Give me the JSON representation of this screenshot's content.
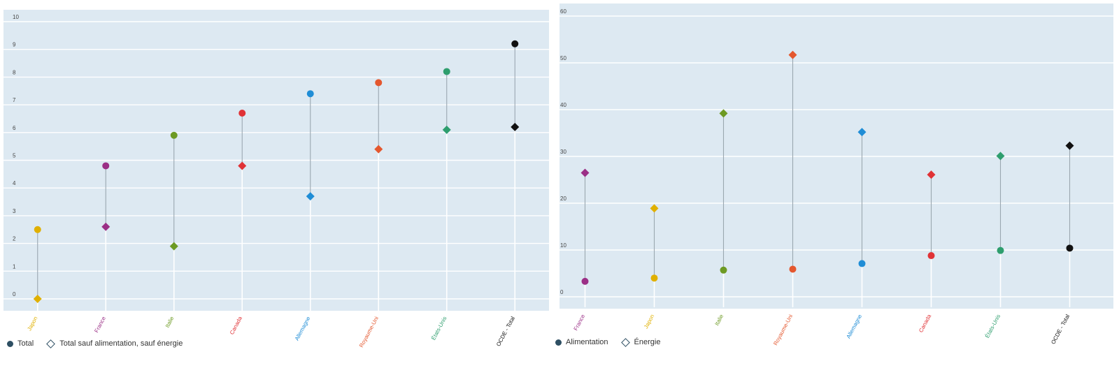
{
  "chart_data": [
    {
      "type": "scatter",
      "title": "",
      "xlabel": "",
      "ylabel": "",
      "ylim": [
        0,
        10
      ],
      "yticks": [
        0,
        1,
        2,
        3,
        4,
        5,
        6,
        7,
        8,
        9,
        10
      ],
      "grid": true,
      "legend_position": "bottom-left",
      "categories": [
        "Japon",
        "France",
        "Italie",
        "Canada",
        "Allemagne",
        "Royaume-Uni",
        "États-Unis",
        "OCDE - Total"
      ],
      "category_colors": [
        "#e0b000",
        "#9b2f86",
        "#6d9a23",
        "#e03236",
        "#1f8dd6",
        "#e4572e",
        "#2e9e6e",
        "#111111"
      ],
      "series": [
        {
          "name": "Total",
          "marker": "circle",
          "values": [
            2.5,
            4.8,
            5.9,
            6.7,
            7.4,
            7.8,
            8.2,
            9.2
          ]
        },
        {
          "name": "Total sauf alimentation, sauf énergie",
          "marker": "diamond",
          "values": [
            0.0,
            2.6,
            1.9,
            4.8,
            3.7,
            5.4,
            6.1,
            6.2
          ]
        }
      ]
    },
    {
      "type": "scatter",
      "title": "",
      "xlabel": "",
      "ylabel": "",
      "ylim": [
        0,
        60
      ],
      "yticks": [
        0,
        10,
        20,
        30,
        40,
        50,
        60
      ],
      "grid": true,
      "legend_position": "bottom-left",
      "categories": [
        "France",
        "Japon",
        "Italie",
        "Royaume-Uni",
        "Allemagne",
        "Canada",
        "États-Unis",
        "OCDE - Total"
      ],
      "category_colors": [
        "#9b2f86",
        "#e0b000",
        "#6d9a23",
        "#e4572e",
        "#1f8dd6",
        "#e03236",
        "#2e9e6e",
        "#111111"
      ],
      "series": [
        {
          "name": "Alimentation",
          "marker": "circle",
          "values": [
            3.3,
            4.0,
            5.7,
            5.9,
            7.1,
            8.8,
            9.9,
            10.4
          ]
        },
        {
          "name": "Énergie",
          "marker": "diamond",
          "values": [
            26.5,
            18.9,
            39.2,
            51.7,
            35.2,
            26.1,
            30.1,
            32.3
          ]
        }
      ]
    }
  ]
}
